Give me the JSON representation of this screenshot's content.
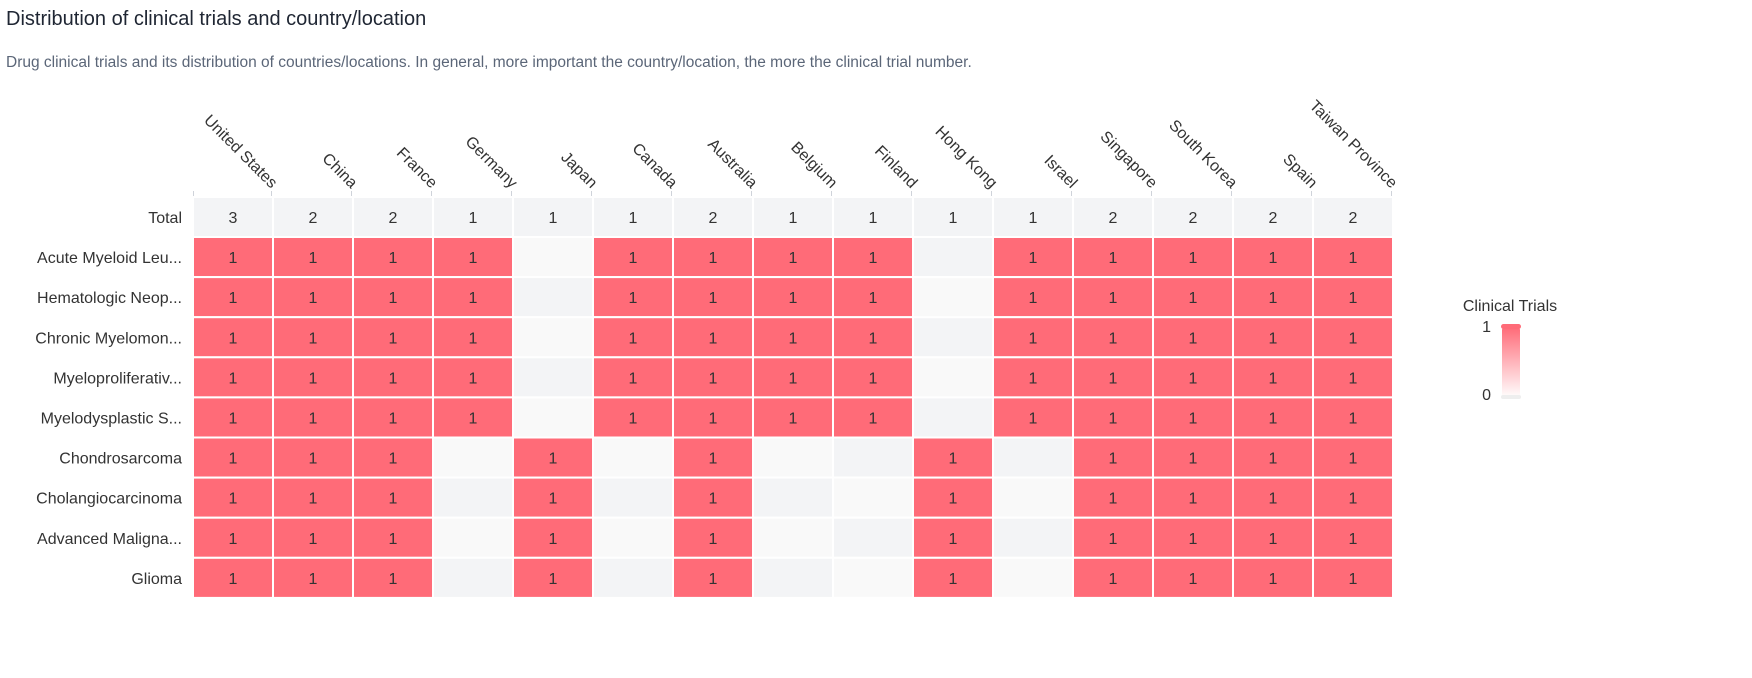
{
  "header": {
    "title": "Distribution of clinical trials and country/location",
    "subtitle": "Drug clinical trials and its distribution of countries/locations. In general, more important the country/location, the more the clinical trial number."
  },
  "colors": {
    "filled": "#ff6b78",
    "empty_a": "#f9f9f9",
    "empty_b": "#f3f4f6",
    "total_row": "#f3f4f6",
    "text": "#333333"
  },
  "chart_data": {
    "type": "heatmap",
    "columns": [
      "United States",
      "China",
      "France",
      "Germany",
      "Japan",
      "Canada",
      "Australia",
      "Belgium",
      "Finland",
      "Hong Kong",
      "Israel",
      "Singapore",
      "South Korea",
      "Spain",
      "Taiwan Province"
    ],
    "total_label": "Total",
    "totals": [
      3,
      2,
      2,
      1,
      1,
      1,
      2,
      1,
      1,
      1,
      1,
      2,
      2,
      2,
      2
    ],
    "rows": [
      {
        "label": "Acute Myeloid Leu...",
        "values": [
          1,
          1,
          1,
          1,
          0,
          1,
          1,
          1,
          1,
          0,
          1,
          1,
          1,
          1,
          1
        ]
      },
      {
        "label": "Hematologic Neop...",
        "values": [
          1,
          1,
          1,
          1,
          0,
          1,
          1,
          1,
          1,
          0,
          1,
          1,
          1,
          1,
          1
        ]
      },
      {
        "label": "Chronic Myelomon...",
        "values": [
          1,
          1,
          1,
          1,
          0,
          1,
          1,
          1,
          1,
          0,
          1,
          1,
          1,
          1,
          1
        ]
      },
      {
        "label": "Myeloproliferativ...",
        "values": [
          1,
          1,
          1,
          1,
          0,
          1,
          1,
          1,
          1,
          0,
          1,
          1,
          1,
          1,
          1
        ]
      },
      {
        "label": "Myelodysplastic S...",
        "values": [
          1,
          1,
          1,
          1,
          0,
          1,
          1,
          1,
          1,
          0,
          1,
          1,
          1,
          1,
          1
        ]
      },
      {
        "label": "Chondrosarcoma",
        "values": [
          1,
          1,
          1,
          0,
          1,
          0,
          1,
          0,
          0,
          1,
          0,
          1,
          1,
          1,
          1
        ]
      },
      {
        "label": "Cholangiocarcinoma",
        "values": [
          1,
          1,
          1,
          0,
          1,
          0,
          1,
          0,
          0,
          1,
          0,
          1,
          1,
          1,
          1
        ]
      },
      {
        "label": "Advanced Maligna...",
        "values": [
          1,
          1,
          1,
          0,
          1,
          0,
          1,
          0,
          0,
          1,
          0,
          1,
          1,
          1,
          1
        ]
      },
      {
        "label": "Glioma",
        "values": [
          1,
          1,
          1,
          0,
          1,
          0,
          1,
          0,
          0,
          1,
          0,
          1,
          1,
          1,
          1
        ]
      }
    ],
    "legend": {
      "title": "Clinical Trials",
      "max_label": "1",
      "min_label": "0",
      "placement": "right"
    }
  }
}
